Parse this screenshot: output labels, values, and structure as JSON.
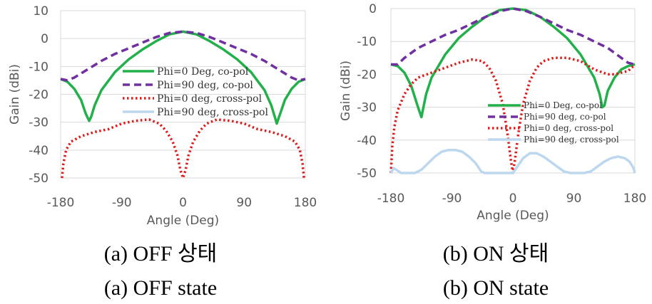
{
  "chart_data": [
    {
      "type": "line",
      "title": "",
      "xlabel": "Angle (Deg)",
      "ylabel": "Gain (dBi)",
      "xlim": [
        -180,
        180
      ],
      "ylim": [
        -50,
        10
      ],
      "xticks": [
        -180,
        -90,
        0,
        90,
        180
      ],
      "yticks": [
        10,
        0,
        -10,
        -20,
        -30,
        -40,
        -50
      ],
      "grid": "horizontal",
      "caption_ko": "(a) OFF 상태",
      "caption_en": "(a) OFF state",
      "legend_placement": "center-right",
      "series": [
        {
          "name": "Phi=0 Deg, co-pol",
          "color": "#22b04a",
          "dash": "solid",
          "x": [
            -180,
            -170,
            -160,
            -150,
            -143,
            -138,
            -135,
            -130,
            -120,
            -100,
            -80,
            -60,
            -40,
            -20,
            0,
            20,
            40,
            60,
            80,
            100,
            120,
            130,
            135,
            138,
            143,
            150,
            160,
            170,
            180
          ],
          "y": [
            -14.5,
            -15.5,
            -18,
            -22,
            -27,
            -29.5,
            -28,
            -24,
            -18.5,
            -12,
            -7.5,
            -4,
            -1,
            1.5,
            2.5,
            1.5,
            -1,
            -4,
            -7.5,
            -12,
            -18.5,
            -24,
            -28,
            -30.5,
            -27,
            -22,
            -18,
            -15.5,
            -14.5
          ]
        },
        {
          "name": "Phi=90 deg, co-pol",
          "color": "#7030a0",
          "dash": "10,6",
          "x": [
            -180,
            -170,
            -160,
            -140,
            -120,
            -100,
            -80,
            -60,
            -40,
            -20,
            0,
            20,
            40,
            60,
            80,
            100,
            120,
            140,
            160,
            170,
            180
          ],
          "y": [
            -14.5,
            -15,
            -14,
            -11,
            -8,
            -5.5,
            -3.5,
            -1.5,
            0.5,
            2,
            2.5,
            2,
            0.5,
            -1.5,
            -3.5,
            -5.5,
            -8,
            -11,
            -14,
            -15,
            -14.5
          ]
        },
        {
          "name": "Phi=0 deg, cross-pol",
          "color": "#e01b1b",
          "dash": "2.5,3.5",
          "x": [
            -178,
            -176,
            -172,
            -165,
            -150,
            -130,
            -110,
            -90,
            -70,
            -50,
            -35,
            -25,
            -15,
            -8,
            -4,
            0,
            4,
            8,
            15,
            25,
            35,
            50,
            70,
            90,
            110,
            130,
            150,
            165,
            172,
            176,
            178
          ],
          "y": [
            -50,
            -45,
            -40,
            -37,
            -35,
            -33.5,
            -32.5,
            -30.5,
            -29.5,
            -29,
            -30.5,
            -33,
            -37,
            -42,
            -47,
            -50,
            -47,
            -42,
            -37,
            -33,
            -30.5,
            -29,
            -29.5,
            -30.5,
            -32.5,
            -33.5,
            -35,
            -37,
            -40,
            -45,
            -50
          ]
        },
        {
          "name": "Phi=90 deg, cross-pol",
          "color": "#bdd7ee",
          "dash": "solid",
          "x": [],
          "y": []
        }
      ]
    },
    {
      "type": "line",
      "title": "",
      "xlabel": "Angle (Deg)",
      "ylabel": "Gain (dBi)",
      "xlim": [
        -180,
        180
      ],
      "ylim": [
        -50,
        0
      ],
      "xticks": [
        -180,
        -90,
        0,
        90,
        180
      ],
      "yticks": [
        0,
        -10,
        -20,
        -30,
        -40,
        -50
      ],
      "grid": "horizontal",
      "caption_ko": "(b) ON 상태",
      "caption_en": "(b) ON state",
      "legend_placement": "bottom-right",
      "series": [
        {
          "name": "Phi=0 Deg, co-pol",
          "color": "#22b04a",
          "dash": "solid",
          "x": [
            -180,
            -170,
            -160,
            -150,
            -140,
            -135,
            -132,
            -128,
            -120,
            -100,
            -80,
            -60,
            -40,
            -20,
            0,
            20,
            40,
            60,
            80,
            100,
            120,
            128,
            132,
            135,
            140,
            150,
            160,
            170,
            180
          ],
          "y": [
            -17,
            -17.5,
            -19.5,
            -23.5,
            -30,
            -33,
            -30,
            -26,
            -21,
            -14,
            -9,
            -5.5,
            -2.5,
            -0.5,
            0,
            -0.5,
            -2.5,
            -5.5,
            -9,
            -14,
            -21,
            -26,
            -30,
            -29.5,
            -25,
            -21,
            -18.5,
            -17.5,
            -17
          ]
        },
        {
          "name": "Phi=90 deg, co-pol",
          "color": "#7030a0",
          "dash": "10,6",
          "x": [
            -180,
            -170,
            -160,
            -140,
            -120,
            -100,
            -80,
            -60,
            -40,
            -20,
            0,
            20,
            40,
            60,
            80,
            100,
            120,
            140,
            160,
            170,
            180
          ],
          "y": [
            -17,
            -17,
            -15,
            -12,
            -10,
            -8,
            -6.5,
            -4.5,
            -2.5,
            -0.8,
            0,
            -0.8,
            -2.5,
            -4.5,
            -6.5,
            -8,
            -10,
            -12,
            -15,
            -16.5,
            -17
          ]
        },
        {
          "name": "Phi=0 deg, cross-pol",
          "color": "#e01b1b",
          "dash": "2.5,3.5",
          "x": [
            -180,
            -178,
            -175,
            -170,
            -160,
            -150,
            -140,
            -120,
            -100,
            -80,
            -60,
            -45,
            -35,
            -25,
            -15,
            -8,
            -3,
            0,
            3,
            8,
            15,
            25,
            35,
            45,
            60,
            80,
            100,
            120,
            140,
            150,
            160,
            170,
            175,
            178,
            180
          ],
          "y": [
            -50,
            -42,
            -36,
            -31,
            -26,
            -23,
            -21,
            -19.5,
            -18,
            -16.5,
            -15.5,
            -16,
            -18,
            -22,
            -29,
            -38,
            -46,
            -50,
            -46,
            -38,
            -29,
            -22,
            -18,
            -16,
            -15,
            -15,
            -16,
            -18.5,
            -20,
            -20,
            -19.5,
            -19,
            -18,
            -17.5,
            -17
          ]
        },
        {
          "name": "Phi=90 deg, cross-pol",
          "color": "#bdd7ee",
          "dash": "solid",
          "x": [
            -180,
            -176,
            -172,
            -165,
            -155,
            -145,
            -135,
            -125,
            -115,
            -105,
            -95,
            -85,
            -75,
            -65,
            -55,
            -47,
            -42,
            -40,
            -35,
            -25,
            -15,
            -5,
            0,
            5,
            15,
            25,
            35,
            45,
            55,
            65,
            75,
            85,
            95,
            100,
            105,
            115,
            125,
            135,
            145,
            155,
            165,
            172,
            178,
            180
          ],
          "y": [
            -50,
            -48.5,
            -49,
            -50,
            -50,
            -50,
            -49,
            -47,
            -45,
            -43.5,
            -43,
            -43,
            -43.5,
            -45,
            -47,
            -49.5,
            -50,
            -50,
            -50,
            -50,
            -50,
            -50,
            -50,
            -48.5,
            -45.5,
            -44,
            -44,
            -45,
            -46.5,
            -48,
            -49.5,
            -50,
            -50,
            -50,
            -50,
            -49.5,
            -48,
            -46.5,
            -45.5,
            -45,
            -45.5,
            -46.5,
            -48.5,
            -50
          ]
        }
      ]
    }
  ]
}
